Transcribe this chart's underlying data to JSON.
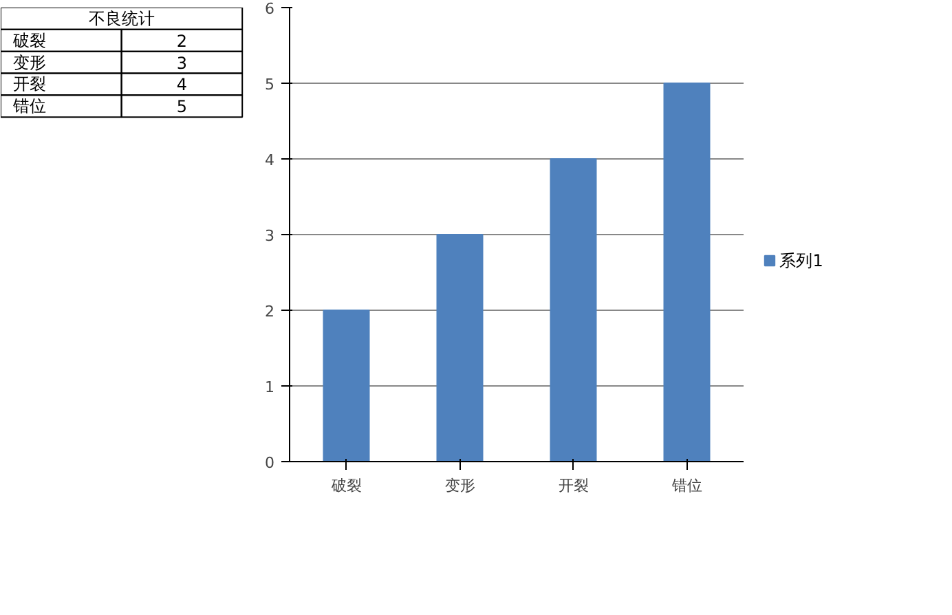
{
  "chart_data": {
    "type": "bar",
    "categories": [
      "破裂",
      "变形",
      "开裂",
      "错位"
    ],
    "series": [
      {
        "name": "系列1",
        "color": "#4f81bd",
        "values": [
          2,
          3,
          4,
          5
        ]
      }
    ],
    "ylim": [
      0,
      6
    ],
    "yticks": [
      0,
      1,
      2,
      3,
      4,
      5,
      6
    ],
    "grid": "y",
    "legend": "right",
    "annotations": [
      "不良统计",
      "破裂",
      "2",
      "变形",
      "3",
      "开裂",
      "4",
      "错位",
      "5"
    ]
  }
}
